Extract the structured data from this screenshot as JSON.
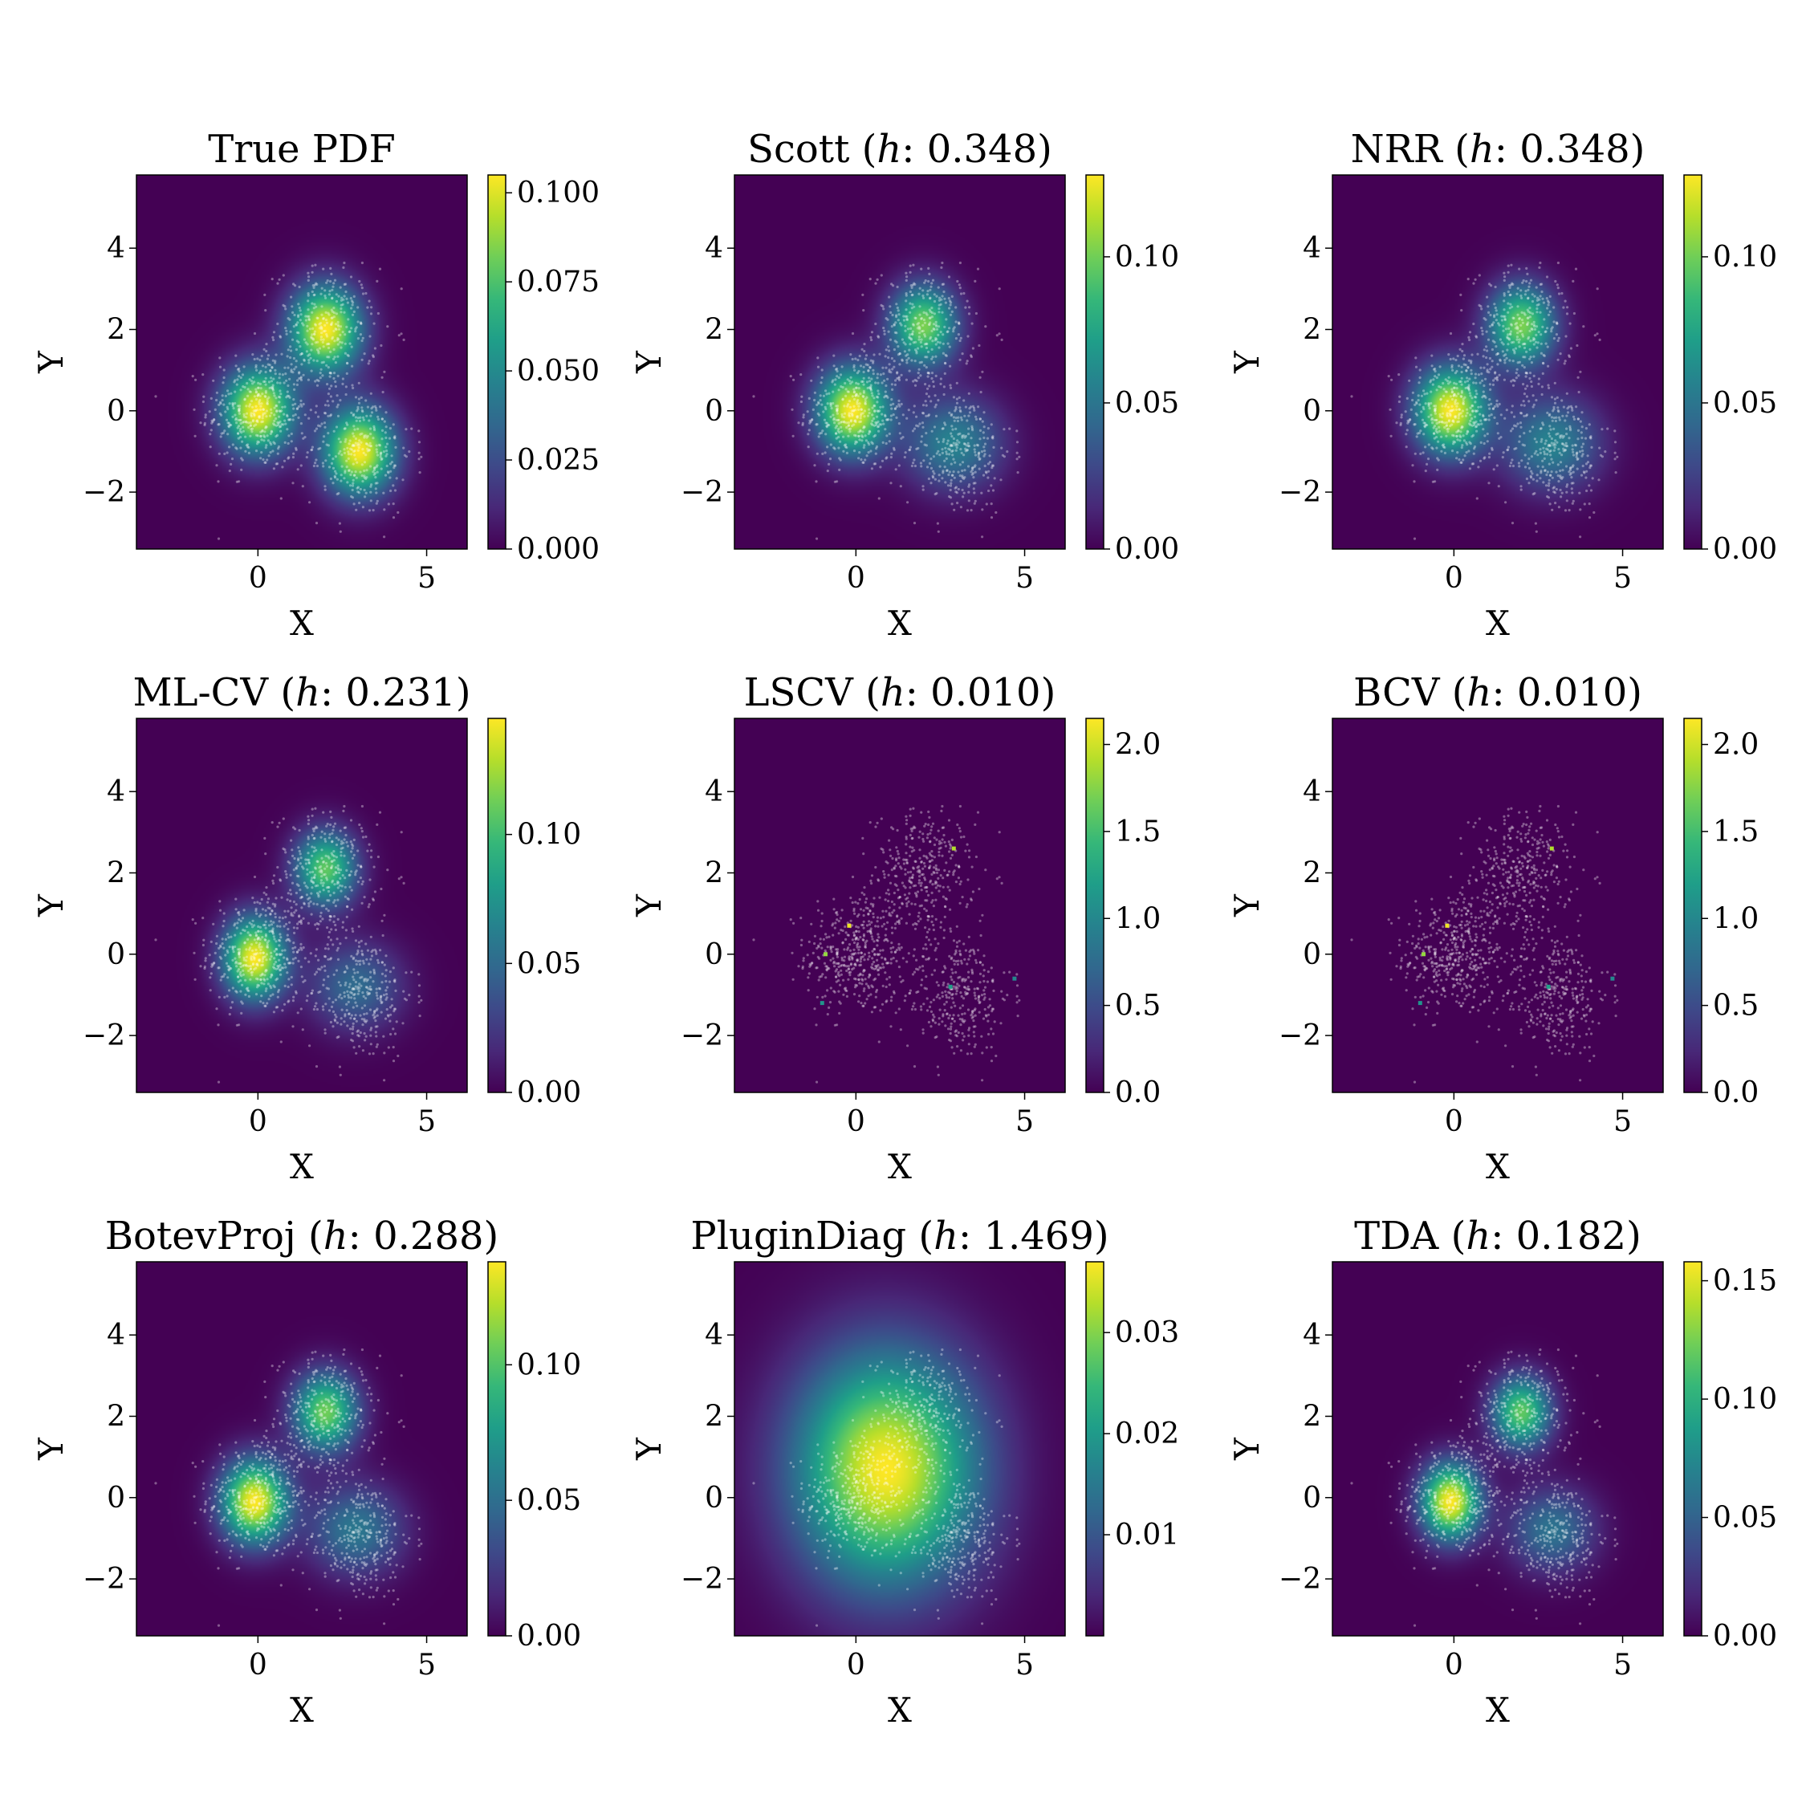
{
  "figure": {
    "colormap": "viridis",
    "scatter_color": "#ffffff",
    "x_tick_labels": [
      "0",
      "5"
    ],
    "y_tick_labels": [
      "4",
      "2",
      "0",
      "−2"
    ],
    "xlabel": "X",
    "ylabel": "Y"
  },
  "chart_data": [
    {
      "type": "heatmap",
      "title": "True PDF",
      "xlabel": "X",
      "ylabel": "Y",
      "xlim": [
        -3.6,
        6.2
      ],
      "ylim": [
        -3.4,
        5.8
      ],
      "xticks": [
        0,
        5
      ],
      "yticks": [
        -2,
        0,
        2,
        4
      ],
      "colorbar": {
        "min": 0.0,
        "max": 0.105,
        "ticks": [
          0.0,
          0.025,
          0.05,
          0.075,
          0.1
        ],
        "tick_labels": [
          "0.000",
          "0.025",
          "0.050",
          "0.075",
          "0.100"
        ]
      },
      "density_components": [
        {
          "x": 0,
          "y": 0,
          "sx": 0.75,
          "sy": 0.75,
          "w": 1.0
        },
        {
          "x": 2,
          "y": 2,
          "sx": 0.75,
          "sy": 0.75,
          "w": 1.0
        },
        {
          "x": 3,
          "y": -1,
          "sx": 0.75,
          "sy": 0.75,
          "w": 1.0
        }
      ]
    },
    {
      "type": "heatmap",
      "title": "Scott (h: 0.348)",
      "title_method": "Scott",
      "title_h": "0.348",
      "xlabel": "X",
      "ylabel": "Y",
      "xlim": [
        -3.6,
        6.2
      ],
      "ylim": [
        -3.4,
        5.8
      ],
      "xticks": [
        0,
        5
      ],
      "yticks": [
        -2,
        0,
        2,
        4
      ],
      "colorbar": {
        "min": 0.0,
        "max": 0.128,
        "ticks": [
          0.0,
          0.05,
          0.1
        ],
        "tick_labels": [
          "0.00",
          "0.05",
          "0.10"
        ]
      },
      "density_components": [
        {
          "x": -0.1,
          "y": 0.0,
          "sx": 0.75,
          "sy": 0.75,
          "w": 1.0
        },
        {
          "x": 2.0,
          "y": 2.1,
          "sx": 0.7,
          "sy": 0.7,
          "w": 0.8
        },
        {
          "x": 2.9,
          "y": -0.8,
          "sx": 1.0,
          "sy": 0.8,
          "w": 0.45
        }
      ]
    },
    {
      "type": "heatmap",
      "title": "NRR (h: 0.348)",
      "title_method": "NRR",
      "title_h": "0.348",
      "xlabel": "X",
      "ylabel": "Y",
      "xlim": [
        -3.6,
        6.2
      ],
      "ylim": [
        -3.4,
        5.8
      ],
      "xticks": [
        0,
        5
      ],
      "yticks": [
        -2,
        0,
        2,
        4
      ],
      "colorbar": {
        "min": 0.0,
        "max": 0.128,
        "ticks": [
          0.0,
          0.05,
          0.1
        ],
        "tick_labels": [
          "0.00",
          "0.05",
          "0.10"
        ]
      },
      "density_components": [
        {
          "x": -0.1,
          "y": 0.0,
          "sx": 0.75,
          "sy": 0.75,
          "w": 1.0
        },
        {
          "x": 2.0,
          "y": 2.1,
          "sx": 0.7,
          "sy": 0.7,
          "w": 0.8
        },
        {
          "x": 2.9,
          "y": -0.8,
          "sx": 1.0,
          "sy": 0.8,
          "w": 0.45
        }
      ]
    },
    {
      "type": "heatmap",
      "title": "ML-CV (h: 0.231)",
      "title_method": "ML-CV",
      "title_h": "0.231",
      "xlabel": "X",
      "ylabel": "Y",
      "xlim": [
        -3.6,
        6.2
      ],
      "ylim": [
        -3.4,
        5.8
      ],
      "xticks": [
        0,
        5
      ],
      "yticks": [
        -2,
        0,
        2,
        4
      ],
      "colorbar": {
        "min": 0.0,
        "max": 0.145,
        "ticks": [
          0.0,
          0.05,
          0.1
        ],
        "tick_labels": [
          "0.00",
          "0.05",
          "0.10"
        ]
      },
      "density_components": [
        {
          "x": -0.1,
          "y": -0.1,
          "sx": 0.65,
          "sy": 0.7,
          "w": 1.0
        },
        {
          "x": 2.0,
          "y": 2.1,
          "sx": 0.65,
          "sy": 0.65,
          "w": 0.75
        },
        {
          "x": 2.9,
          "y": -0.8,
          "sx": 0.95,
          "sy": 0.75,
          "w": 0.35
        }
      ]
    },
    {
      "type": "heatmap",
      "title": "LSCV (h: 0.010)",
      "title_method": "LSCV",
      "title_h": "0.010",
      "xlabel": "X",
      "ylabel": "Y",
      "xlim": [
        -3.6,
        6.2
      ],
      "ylim": [
        -3.4,
        5.8
      ],
      "xticks": [
        0,
        5
      ],
      "yticks": [
        -2,
        0,
        2,
        4
      ],
      "colorbar": {
        "min": 0.0,
        "max": 2.15,
        "ticks": [
          0.0,
          0.5,
          1.0,
          1.5,
          2.0
        ],
        "tick_labels": [
          "0.0",
          "0.5",
          "1.0",
          "1.5",
          "2.0"
        ]
      },
      "density_components": [],
      "hot_spots": [
        {
          "x": -0.2,
          "y": 0.7,
          "v": 2.1
        },
        {
          "x": -0.9,
          "y": 0.0,
          "v": 1.8
        },
        {
          "x": 2.9,
          "y": 2.6,
          "v": 1.9
        },
        {
          "x": 2.8,
          "y": -0.8,
          "v": 1.2
        },
        {
          "x": 4.7,
          "y": -0.6,
          "v": 1.0
        },
        {
          "x": -1.0,
          "y": -1.2,
          "v": 1.1
        }
      ]
    },
    {
      "type": "heatmap",
      "title": "BCV (h: 0.010)",
      "title_method": "BCV",
      "title_h": "0.010",
      "xlabel": "X",
      "ylabel": "Y",
      "xlim": [
        -3.6,
        6.2
      ],
      "ylim": [
        -3.4,
        5.8
      ],
      "xticks": [
        0,
        5
      ],
      "yticks": [
        -2,
        0,
        2,
        4
      ],
      "colorbar": {
        "min": 0.0,
        "max": 2.15,
        "ticks": [
          0.0,
          0.5,
          1.0,
          1.5,
          2.0
        ],
        "tick_labels": [
          "0.0",
          "0.5",
          "1.0",
          "1.5",
          "2.0"
        ]
      },
      "density_components": [],
      "hot_spots": [
        {
          "x": -0.2,
          "y": 0.7,
          "v": 2.1
        },
        {
          "x": -0.9,
          "y": 0.0,
          "v": 1.8
        },
        {
          "x": 2.9,
          "y": 2.6,
          "v": 1.9
        },
        {
          "x": 2.8,
          "y": -0.8,
          "v": 1.2
        },
        {
          "x": 4.7,
          "y": -0.6,
          "v": 1.0
        },
        {
          "x": -1.0,
          "y": -1.2,
          "v": 1.1
        }
      ]
    },
    {
      "type": "heatmap",
      "title": "BotevProj (h: 0.288)",
      "title_method": "BotevProj",
      "title_h": "0.288",
      "xlabel": "X",
      "ylabel": "Y",
      "xlim": [
        -3.6,
        6.2
      ],
      "ylim": [
        -3.4,
        5.8
      ],
      "xticks": [
        0,
        5
      ],
      "yticks": [
        -2,
        0,
        2,
        4
      ],
      "colorbar": {
        "min": 0.0,
        "max": 0.138,
        "ticks": [
          0.0,
          0.05,
          0.1
        ],
        "tick_labels": [
          "0.00",
          "0.05",
          "0.10"
        ]
      },
      "density_components": [
        {
          "x": -0.1,
          "y": -0.1,
          "sx": 0.7,
          "sy": 0.72,
          "w": 1.0
        },
        {
          "x": 2.0,
          "y": 2.1,
          "sx": 0.68,
          "sy": 0.68,
          "w": 0.78
        },
        {
          "x": 2.9,
          "y": -0.8,
          "sx": 0.98,
          "sy": 0.78,
          "w": 0.4
        }
      ]
    },
    {
      "type": "heatmap",
      "title": "PluginDiag (h: 1.469)",
      "title_method": "PluginDiag",
      "title_h": "1.469",
      "xlabel": "X",
      "ylabel": "Y",
      "xlim": [
        -3.6,
        6.2
      ],
      "ylim": [
        -3.4,
        5.8
      ],
      "xticks": [
        0,
        5
      ],
      "yticks": [
        -2,
        0,
        2,
        4
      ],
      "colorbar": {
        "min": 0.0,
        "max": 0.037,
        "ticks": [
          0.01,
          0.02,
          0.03
        ],
        "tick_labels": [
          "0.01",
          "0.02",
          "0.03"
        ]
      },
      "density_components": [
        {
          "x": 0.9,
          "y": 0.7,
          "sx": 1.9,
          "sy": 2.0,
          "w": 1.0
        }
      ]
    },
    {
      "type": "heatmap",
      "title": "TDA (h: 0.182)",
      "title_method": "TDA",
      "title_h": "0.182",
      "xlabel": "X",
      "ylabel": "Y",
      "xlim": [
        -3.6,
        6.2
      ],
      "ylim": [
        -3.4,
        5.8
      ],
      "xticks": [
        0,
        5
      ],
      "yticks": [
        -2,
        0,
        2,
        4
      ],
      "colorbar": {
        "min": 0.0,
        "max": 0.158,
        "ticks": [
          0.0,
          0.05,
          0.1,
          0.15
        ],
        "tick_labels": [
          "0.00",
          "0.05",
          "0.10",
          "0.15"
        ]
      },
      "density_components": [
        {
          "x": -0.1,
          "y": -0.1,
          "sx": 0.62,
          "sy": 0.66,
          "w": 1.0
        },
        {
          "x": 2.0,
          "y": 2.1,
          "sx": 0.62,
          "sy": 0.62,
          "w": 0.75
        },
        {
          "x": 2.9,
          "y": -0.8,
          "sx": 0.9,
          "sy": 0.72,
          "w": 0.38
        }
      ]
    }
  ]
}
